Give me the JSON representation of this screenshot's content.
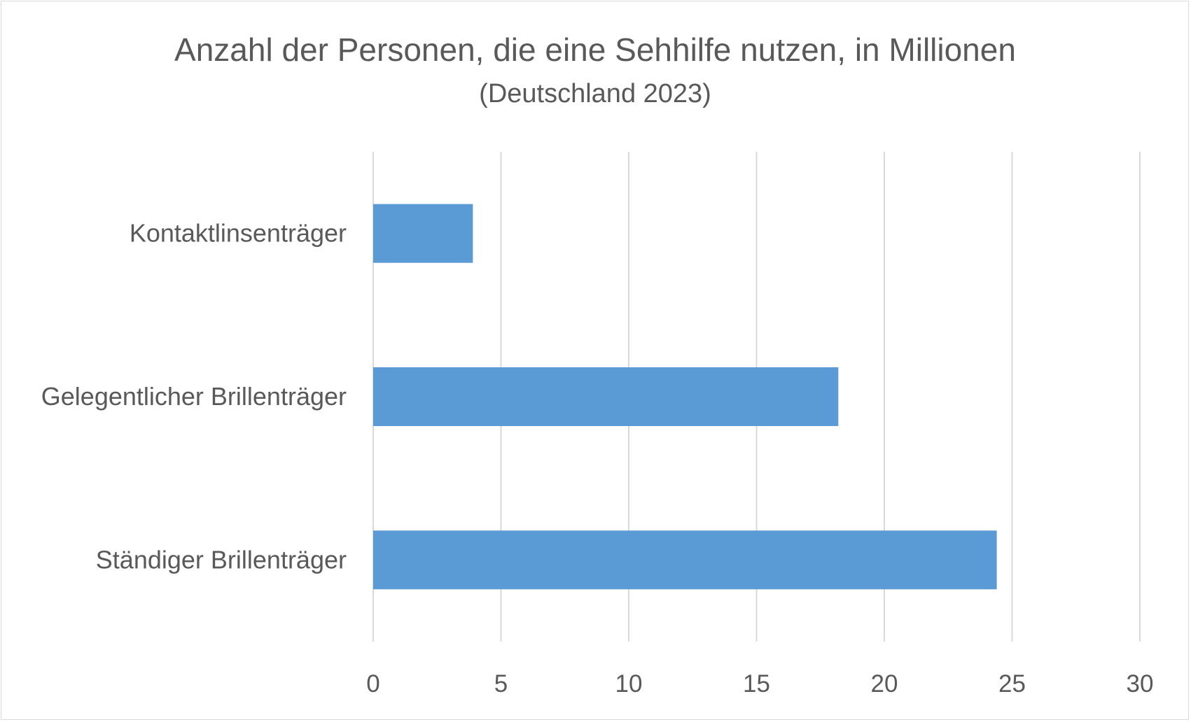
{
  "chart_data": {
    "type": "bar",
    "orientation": "horizontal",
    "title": "Anzahl der Personen, die eine Sehhilfe nutzen, in Millionen",
    "subtitle": "(Deutschland 2023)",
    "categories": [
      "Kontaktlinsenträger",
      "Gelegentlicher Brillenträger",
      "Ständiger Brillenträger"
    ],
    "values": [
      3.9,
      18.2,
      24.4
    ],
    "xlim": [
      0,
      30
    ],
    "xticks": [
      "0",
      "5",
      "10",
      "15",
      "20",
      "25",
      "30"
    ],
    "xlabel": "",
    "ylabel": "",
    "grid": "vertical",
    "legend": "none",
    "bar_color": "#5b9bd5",
    "grid_color": "#d9d9d9",
    "text_color": "#595959"
  }
}
